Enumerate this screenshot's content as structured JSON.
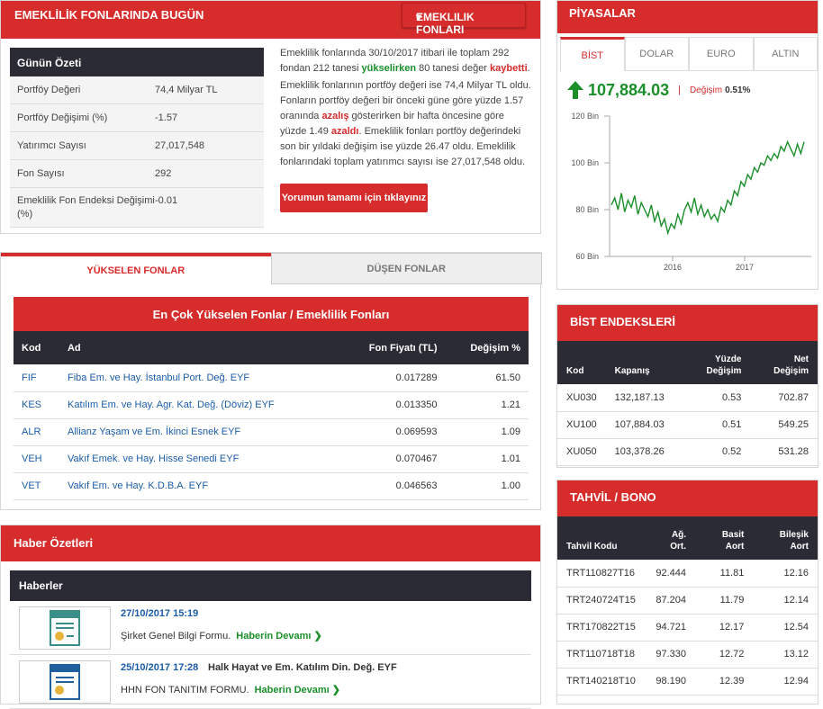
{
  "daily": {
    "title": "EMEKLİLİK FONLARINDA BUGÜN",
    "dropdown": "Emeklilik Fonları",
    "summary_title": "Günün Özeti",
    "rows": [
      {
        "k": "Portföy Değeri",
        "v": "74,4 Milyar TL"
      },
      {
        "k": "Portföy Değişimi (%)",
        "v": "-1.57"
      },
      {
        "k": "Yatırımcı Sayısı",
        "v": "27,017,548"
      },
      {
        "k": "Fon Sayısı",
        "v": "292"
      },
      {
        "k": "Emeklilik Fon Endeksi Değişimi (%)",
        "v": "-0.01"
      }
    ],
    "p1a": "Emeklilik fonlarında 30/10/2017 itibari ile toplam 292 fondan 212 tanesi",
    "p1b": "yükselirken",
    "p1c": "80 tanesi değer",
    "p1d": "kaybetti",
    "p1e": ".",
    "p2a": "Emeklilik fonlarının portföy değeri ise 74,4 Milyar TL oldu. Fonların portföy değeri bir önceki güne göre yüzde 1.57 oranında",
    "p2b": "azalış",
    "p2c": "gösterirken bir hafta öncesine göre yüzde 1.49",
    "p2d": "azaldı",
    "p2e": ". Emeklilik fonları portföy değerindeki son bir yıldaki değişim ise yüzde 26.47 oldu. Emeklilik fonlarındaki toplam yatırımcı sayısı ise 27,017,548 oldu.",
    "button": "Yorumun tamamı için tıklayınız"
  },
  "funds": {
    "tab_up": "YÜKSELEN FONLAR",
    "tab_down": "DÜŞEN FONLAR",
    "title": "En Çok Yükselen Fonlar / Emeklilik Fonları",
    "headers": [
      "Kod",
      "Ad",
      "Fon Fiyatı (TL)",
      "Değişim %"
    ],
    "rows": [
      [
        "FIF",
        "Fiba Em. ve Hay. İstanbul Port. Değ. EYF",
        "0.017289",
        "61.50"
      ],
      [
        "KES",
        "Katılım Em. ve Hay. Agr. Kat. Değ. (Döviz) EYF",
        "0.013350",
        "1.21"
      ],
      [
        "ALR",
        "Allianz Yaşam ve Em. İkinci Esnek EYF",
        "0.069593",
        "1.09"
      ],
      [
        "VEH",
        "Vakıf Emek. ve Hay. Hisse Senedi EYF",
        "0.070467",
        "1.01"
      ],
      [
        "VET",
        "Vakıf Em. ve Hay. K.D.B.A. EYF",
        "0.046563",
        "1.00"
      ]
    ]
  },
  "news": {
    "title": "Haber Özetleri",
    "subtitle": "Haberler",
    "more": "Haberin Devamı ❯",
    "items": [
      {
        "date": "27/10/2017 15:19",
        "title": "",
        "desc": "Şirket Genel Bilgi Formu."
      },
      {
        "date": "25/10/2017 17:28",
        "title": "Halk Hayat ve Em. Katılım Din. Değ. EYF",
        "desc": "HHN FON TANITIM FORMU."
      }
    ]
  },
  "market": {
    "title": "PİYASALAR",
    "tabs": [
      "BİST",
      "DOLAR",
      "EURO",
      "ALTIN"
    ],
    "value": "107,884.03",
    "change_label": "Değişim",
    "change": "0.51%",
    "arrow": "up-arrow-icon"
  },
  "chart_data": {
    "type": "line",
    "title": "",
    "xlabel": "",
    "ylabel": "",
    "yticks": [
      "60 Bin",
      "80 Bin",
      "100 Bin",
      "120 Bin"
    ],
    "xticks": [
      "2016",
      "2017"
    ],
    "ylim": [
      60000,
      120000
    ],
    "color": "#1a8f2a",
    "values": [
      82,
      85,
      80,
      87,
      79,
      84,
      81,
      86,
      78,
      83,
      80,
      77,
      82,
      75,
      79,
      73,
      76,
      70,
      74,
      72,
      78,
      74,
      80,
      83,
      79,
      85,
      78,
      82,
      77,
      80,
      76,
      78,
      75,
      81,
      79,
      84,
      82,
      88,
      86,
      92,
      90,
      95,
      93,
      98,
      96,
      100,
      99,
      103,
      101,
      104,
      102,
      107,
      105,
      109,
      106,
      103,
      108,
      104,
      109
    ]
  },
  "bist": {
    "title": "BİST ENDEKSLERİ",
    "headers": [
      "Kod",
      "Kapanış",
      "Yüzde Değişim",
      "Net Değişim"
    ],
    "rows": [
      [
        "XU030",
        "132,187.13",
        "0.53",
        "702.87"
      ],
      [
        "XU100",
        "107,884.03",
        "0.51",
        "549.25"
      ],
      [
        "XU050",
        "103,378.26",
        "0.52",
        "531.28"
      ]
    ]
  },
  "bono": {
    "title": "TAHVİL / BONO",
    "headers": [
      "Tahvil Kodu",
      "Ağ. Ort.",
      "Basit Aort",
      "Bileşik Aort"
    ],
    "rows": [
      [
        "TRT110827T16",
        "92.444",
        "11.81",
        "12.16"
      ],
      [
        "TRT240724T15",
        "87.204",
        "11.79",
        "12.14"
      ],
      [
        "TRT170822T15",
        "94.721",
        "12.17",
        "12.54"
      ],
      [
        "TRT110718T18",
        "97.330",
        "12.72",
        "13.12"
      ],
      [
        "TRT140218T10",
        "98.190",
        "12.39",
        "12.94"
      ]
    ]
  }
}
